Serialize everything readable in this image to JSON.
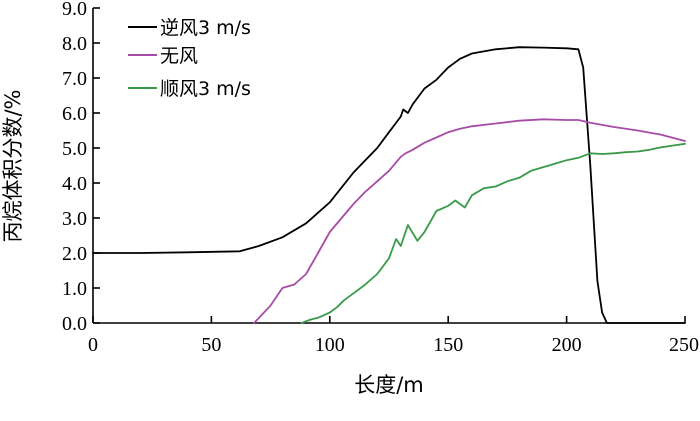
{
  "chart_data": {
    "type": "line",
    "xlabel": "长度/m",
    "ylabel": "丙烷体积分数/%",
    "xlim": [
      0,
      250
    ],
    "ylim": [
      0,
      9
    ],
    "x_ticks": [
      "0",
      "50",
      "100",
      "150",
      "200",
      "250"
    ],
    "y_ticks": [
      "0.0",
      "1.0",
      "2.0",
      "3.0",
      "4.0",
      "5.0",
      "6.0",
      "7.0",
      "8.0",
      "9.0"
    ],
    "grid": false,
    "legend_position": "top-left",
    "series": [
      {
        "name": "逆风3 m/s",
        "color": "#000000",
        "x": [
          0,
          20,
          40,
          62,
          70,
          80,
          90,
          100,
          110,
          120,
          125,
          130,
          131,
          133,
          135,
          140,
          145,
          150,
          155,
          160,
          170,
          180,
          190,
          200,
          205,
          207,
          210,
          213,
          215,
          217,
          250
        ],
        "y": [
          2.0,
          2.0,
          2.02,
          2.05,
          2.2,
          2.45,
          2.85,
          3.45,
          4.3,
          5.0,
          5.45,
          5.9,
          6.1,
          6.0,
          6.25,
          6.7,
          6.95,
          7.3,
          7.55,
          7.7,
          7.82,
          7.88,
          7.87,
          7.85,
          7.82,
          7.3,
          4.5,
          1.2,
          0.3,
          0.0,
          0.0
        ]
      },
      {
        "name": "无风",
        "color": "#a64ca6",
        "x": [
          68,
          75,
          80,
          85,
          90,
          95,
          100,
          105,
          110,
          115,
          120,
          125,
          130,
          132,
          135,
          140,
          145,
          150,
          155,
          160,
          170,
          180,
          190,
          200,
          205,
          210,
          220,
          230,
          240,
          250
        ],
        "y": [
          0.0,
          0.5,
          1.0,
          1.1,
          1.4,
          2.0,
          2.6,
          3.0,
          3.4,
          3.75,
          4.05,
          4.35,
          4.75,
          4.85,
          4.95,
          5.15,
          5.3,
          5.45,
          5.55,
          5.62,
          5.7,
          5.78,
          5.82,
          5.8,
          5.8,
          5.72,
          5.6,
          5.5,
          5.38,
          5.2
        ]
      },
      {
        "name": "顺风3 m/s",
        "color": "#3a9a4a",
        "x": [
          88,
          92,
          95,
          100,
          103,
          106,
          110,
          115,
          120,
          125,
          128,
          130,
          133,
          137,
          140,
          145,
          150,
          153,
          157,
          160,
          165,
          170,
          175,
          180,
          185,
          190,
          195,
          200,
          205,
          210,
          215,
          220,
          225,
          230,
          235,
          240,
          245,
          250
        ],
        "y": [
          0.0,
          0.1,
          0.15,
          0.3,
          0.45,
          0.65,
          0.85,
          1.1,
          1.4,
          1.85,
          2.4,
          2.2,
          2.8,
          2.35,
          2.6,
          3.2,
          3.35,
          3.5,
          3.3,
          3.65,
          3.85,
          3.9,
          4.05,
          4.15,
          4.35,
          4.45,
          4.55,
          4.65,
          4.72,
          4.85,
          4.83,
          4.85,
          4.88,
          4.9,
          4.95,
          5.02,
          5.07,
          5.12
        ]
      }
    ]
  }
}
